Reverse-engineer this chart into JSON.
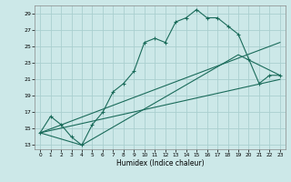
{
  "title": "",
  "xlabel": "Humidex (Indice chaleur)",
  "bg_color": "#cce8e8",
  "grid_color": "#aacfcf",
  "line_color": "#1a6b5a",
  "xlim": [
    -0.5,
    23.5
  ],
  "ylim": [
    12.5,
    30.0
  ],
  "xticks": [
    0,
    1,
    2,
    3,
    4,
    5,
    6,
    7,
    8,
    9,
    10,
    11,
    12,
    13,
    14,
    15,
    16,
    17,
    18,
    19,
    20,
    21,
    22,
    23
  ],
  "yticks": [
    13,
    15,
    17,
    19,
    21,
    23,
    25,
    27,
    29
  ],
  "series1_x": [
    0,
    1,
    2,
    3,
    4,
    5,
    6,
    7,
    8,
    9,
    10,
    11,
    12,
    13,
    14,
    15,
    16,
    17,
    18,
    19,
    20,
    21,
    22,
    23
  ],
  "series1_y": [
    14.5,
    16.5,
    15.5,
    14.0,
    13.0,
    15.5,
    17.0,
    19.5,
    20.5,
    22.0,
    25.5,
    26.0,
    25.5,
    28.0,
    28.5,
    29.5,
    28.5,
    28.5,
    27.5,
    26.5,
    23.5,
    20.5,
    21.5,
    21.5
  ],
  "series2_x": [
    0,
    23
  ],
  "series2_y": [
    14.5,
    25.5
  ],
  "series3_x": [
    0,
    23
  ],
  "series3_y": [
    14.5,
    21.0
  ],
  "series4_x": [
    0,
    4,
    19,
    23
  ],
  "series4_y": [
    14.5,
    13.0,
    24.0,
    21.5
  ]
}
